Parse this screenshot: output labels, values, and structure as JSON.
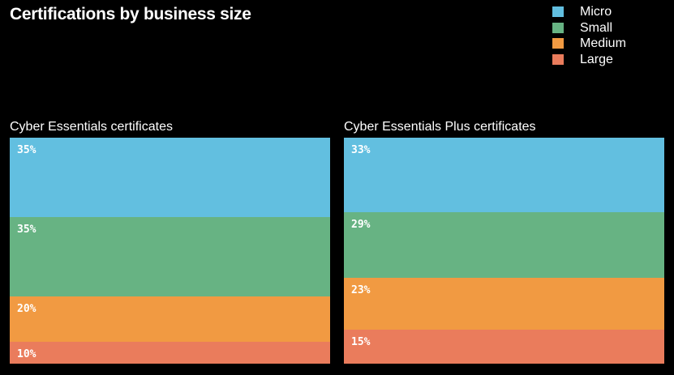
{
  "title": "Certifications by business size",
  "legend": [
    {
      "label": "Micro",
      "color": "#62bfe0"
    },
    {
      "label": "Small",
      "color": "#67b383"
    },
    {
      "label": "Medium",
      "color": "#f19a42"
    },
    {
      "label": "Large",
      "color": "#ea7c5c"
    }
  ],
  "chart_data": [
    {
      "type": "stacked-bar",
      "title": "Cyber Essentials certificates",
      "categories": [
        "Micro",
        "Small",
        "Medium",
        "Large"
      ],
      "values": [
        35,
        35,
        20,
        10
      ],
      "labels": [
        "35%",
        "35%",
        "20%",
        "10%"
      ],
      "colors": [
        "#62bfe0",
        "#67b383",
        "#f19a42",
        "#ea7c5c"
      ],
      "unit": "%"
    },
    {
      "type": "stacked-bar",
      "title": "Cyber Essentials Plus certificates",
      "categories": [
        "Micro",
        "Small",
        "Medium",
        "Large"
      ],
      "values": [
        33,
        29,
        23,
        15
      ],
      "labels": [
        "33%",
        "29%",
        "23%",
        "15%"
      ],
      "colors": [
        "#62bfe0",
        "#67b383",
        "#f19a42",
        "#ea7c5c"
      ],
      "unit": "%"
    }
  ]
}
